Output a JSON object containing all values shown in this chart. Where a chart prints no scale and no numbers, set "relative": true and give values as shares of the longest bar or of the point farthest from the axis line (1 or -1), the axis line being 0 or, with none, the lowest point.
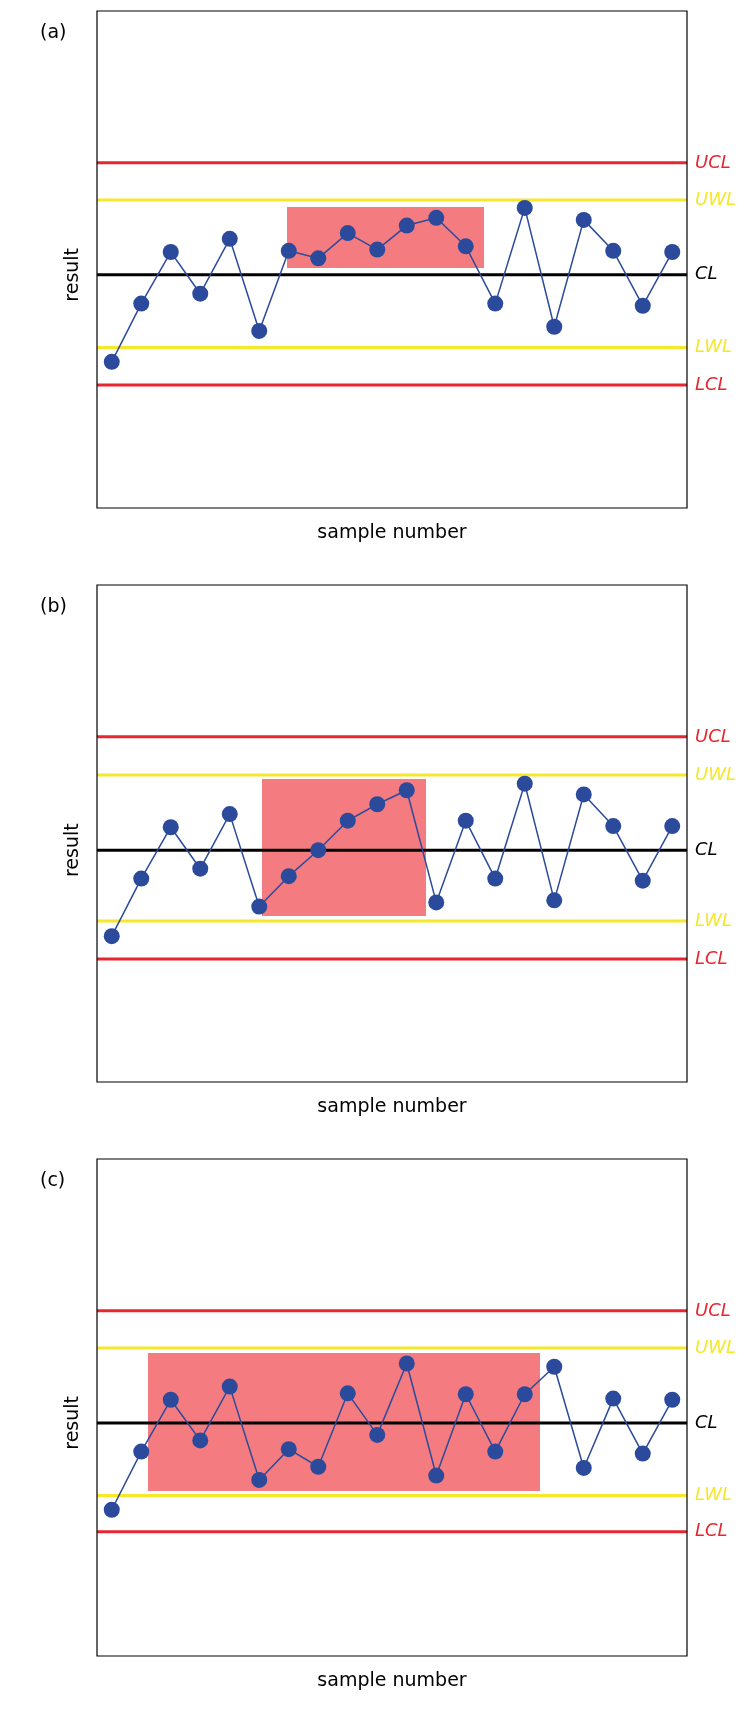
{
  "chart_data": [
    {
      "type": "line",
      "title": "(a)",
      "xlabel": "sample number",
      "ylabel": "result",
      "relative": true,
      "marker": "circle",
      "categories": [
        null,
        null,
        null,
        null,
        null,
        null,
        null,
        null,
        null,
        null,
        null,
        null,
        null,
        null,
        null,
        null,
        null,
        null,
        null,
        null
      ],
      "series": [
        {
          "color": "#2b4a9b",
          "values": [
            0.487,
            0.681,
            0.853,
            0.714,
            0.897,
            0.59,
            0.857,
            0.832,
            0.916,
            0.861,
            0.941,
            0.967,
            0.872,
            0.681,
            1,
            0.604,
            0.96,
            0.857,
            0.674,
            0.853
          ]
        }
      ],
      "ref_lines": [
        {
          "axis": "y",
          "value": 1.15,
          "label": "UCL",
          "color": "#e8262f"
        },
        {
          "axis": "y",
          "value": 1.026,
          "label": "UWL",
          "color": "#f5e72a"
        },
        {
          "axis": "y",
          "value": 0.777,
          "label": "CL",
          "color": "#000000"
        },
        {
          "axis": "y",
          "value": 0.535,
          "label": "LWL",
          "color": "#f5e72a"
        },
        {
          "axis": "y",
          "value": 0.41,
          "label": "LCL",
          "color": "#e8262f"
        }
      ]
    },
    {
      "type": "line",
      "title": "(b)",
      "xlabel": "sample number",
      "ylabel": "result",
      "relative": true,
      "marker": "circle",
      "categories": [
        null,
        null,
        null,
        null,
        null,
        null,
        null,
        null,
        null,
        null,
        null,
        null,
        null,
        null,
        null,
        null,
        null,
        null,
        null,
        null
      ],
      "series": [
        {
          "color": "#2b4a9b",
          "values": [
            0.489,
            0.682,
            0.854,
            0.715,
            0.898,
            0.588,
            0.69,
            0.777,
            0.876,
            0.931,
            0.978,
            0.602,
            0.876,
            0.682,
            1,
            0.609,
            0.964,
            0.858,
            0.675,
            0.858
          ]
        }
      ],
      "ref_lines": [
        {
          "axis": "y",
          "value": 1.157,
          "label": "UCL",
          "color": "#e8262f"
        },
        {
          "axis": "y",
          "value": 1.029,
          "label": "UWL",
          "color": "#f5e72a"
        },
        {
          "axis": "y",
          "value": 0.777,
          "label": "CL",
          "color": "#000000"
        },
        {
          "axis": "y",
          "value": 0.54,
          "label": "LWL",
          "color": "#f5e72a"
        },
        {
          "axis": "y",
          "value": 0.412,
          "label": "LCL",
          "color": "#e8262f"
        }
      ]
    },
    {
      "type": "line",
      "title": "(c)",
      "xlabel": "sample number",
      "ylabel": "result",
      "relative": true,
      "marker": "circle",
      "categories": [
        null,
        null,
        null,
        null,
        null,
        null,
        null,
        null,
        null,
        null,
        null,
        null,
        null,
        null,
        null,
        null,
        null,
        null,
        null,
        null
      ],
      "series": [
        {
          "color": "#2b4a9b",
          "values": [
            0.5,
            0.699,
            0.876,
            0.737,
            0.921,
            0.602,
            0.707,
            0.647,
            0.898,
            0.756,
            1,
            0.617,
            0.895,
            0.699,
            0.895,
            0.989,
            0.643,
            0.88,
            0.692,
            0.876
          ]
        }
      ],
      "ref_lines": [
        {
          "axis": "y",
          "value": 1.18,
          "label": "UCL",
          "color": "#e8262f"
        },
        {
          "axis": "y",
          "value": 1.053,
          "label": "UWL",
          "color": "#f5e72a"
        },
        {
          "axis": "y",
          "value": 0.797,
          "label": "CL",
          "color": "#000000"
        },
        {
          "axis": "y",
          "value": 0.549,
          "label": "LWL",
          "color": "#f5e72a"
        },
        {
          "axis": "y",
          "value": 0.425,
          "label": "LCL",
          "color": "#e8262f"
        }
      ]
    }
  ]
}
